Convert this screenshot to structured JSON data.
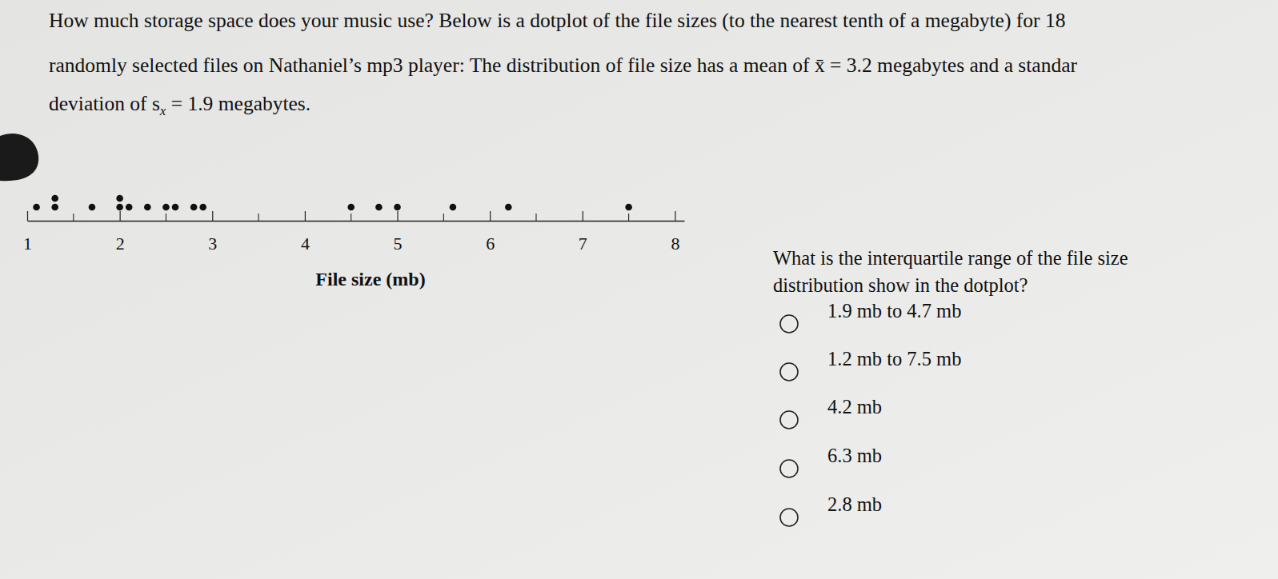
{
  "intro": [
    "How much storage space does your music use? Below is a dotplot of the file sizes (to the nearest tenth of a megabyte) for 18",
    "randomly selected files on Nathaniel’s mp3 player: The distribution of file size has a mean of x̄ = 3.2 megabytes and a standar",
    {
      "before": "deviation of s",
      "sub": "x",
      "after": " = 1.9 megabytes."
    }
  ],
  "question": [
    "What is the interquartile range of the file size",
    "distribution show in the dotplot?"
  ],
  "options": [
    "1.9 mb to 4.7 mb",
    "1.2 mb to 7.5 mb",
    "4.2 mb",
    "6.3 mb",
    "2.8 mb"
  ],
  "chart_data": {
    "type": "dot",
    "xlabel": "File size (mb)",
    "values": [
      1.1,
      1.3,
      1.3,
      1.7,
      2.0,
      2.0,
      2.1,
      2.3,
      2.5,
      2.6,
      2.8,
      2.9,
      4.5,
      4.8,
      5.0,
      5.6,
      6.2,
      7.5
    ],
    "xlim": [
      1,
      8.1
    ],
    "xticks": [
      1,
      2,
      3,
      4,
      5,
      6,
      7,
      8
    ],
    "xminorticks": [
      1.5,
      2.5,
      3.5,
      4.5,
      5.5,
      6.5,
      7.5
    ],
    "color": "#111111"
  }
}
